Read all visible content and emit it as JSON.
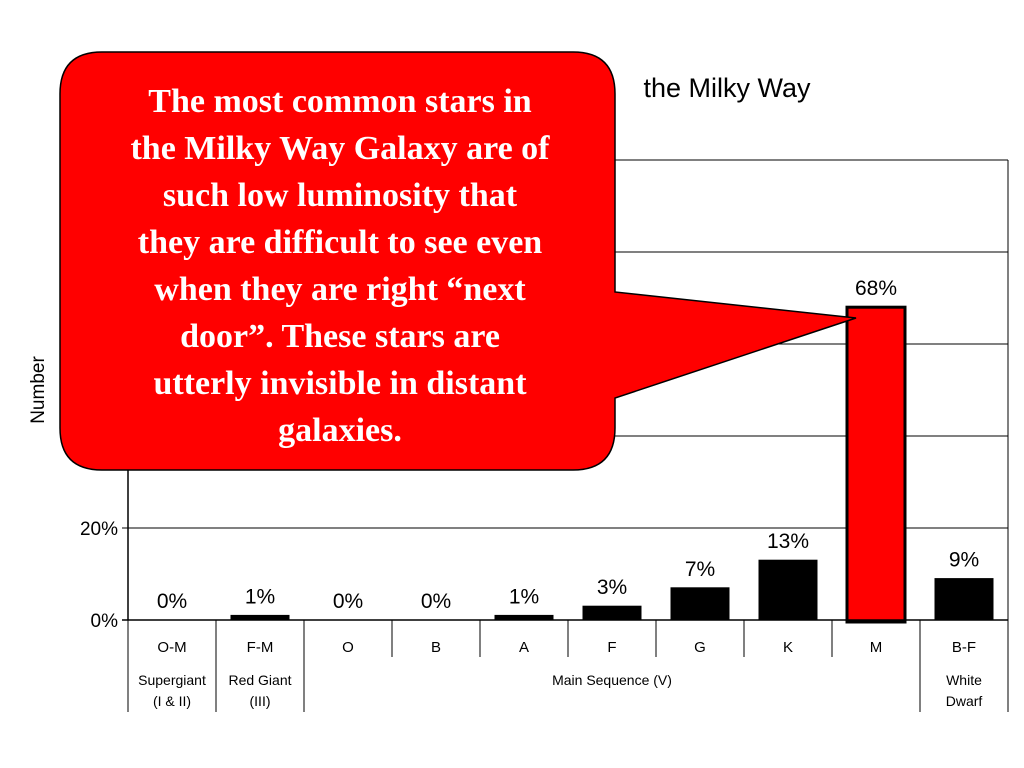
{
  "chart_data": {
    "type": "bar",
    "title": "the Milky Way",
    "ylabel": "Number",
    "ylim": [
      0,
      100
    ],
    "yticks": [
      "0%",
      "20%"
    ],
    "grid": true,
    "categories": [
      "O-M",
      "F-M",
      "O",
      "B",
      "A",
      "F",
      "G",
      "K",
      "M",
      "B-F"
    ],
    "values": [
      0,
      1,
      0,
      0,
      1,
      3,
      7,
      13,
      68,
      9
    ],
    "data_labels": [
      "0%",
      "1%",
      "0%",
      "0%",
      "1%",
      "3%",
      "7%",
      "13%",
      "68%",
      "9%"
    ],
    "bar_colors": [
      "#000000",
      "#000000",
      "#000000",
      "#000000",
      "#000000",
      "#000000",
      "#000000",
      "#000000",
      "#ff0000",
      "#000000"
    ],
    "highlight_index": 8,
    "groups": [
      {
        "label": "Supergiant\n(I & II)",
        "from": 0,
        "to": 0
      },
      {
        "label": "Red Giant\n(III)",
        "from": 1,
        "to": 1
      },
      {
        "label": "Main Sequence (V)",
        "from": 2,
        "to": 8
      },
      {
        "label": "White\nDwarf",
        "from": 9,
        "to": 9
      }
    ]
  },
  "callout": {
    "text": "The most common stars in\nthe Milky Way Galaxy are of\nsuch low luminosity that\nthey are difficult to see even\nwhen they are right “next\ndoor”.  These stars are\nutterly invisible in distant\ngalaxies.",
    "fill": "#ff0000",
    "stroke": "#000000",
    "text_color": "#ffffff"
  }
}
